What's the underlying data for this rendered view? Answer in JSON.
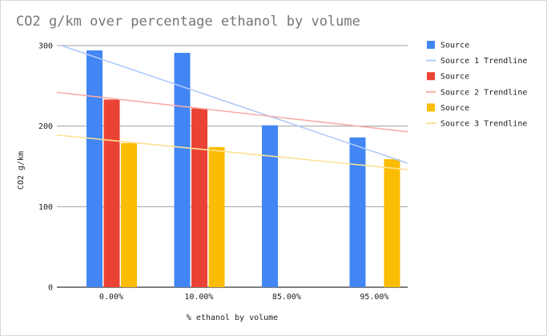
{
  "chart_data": {
    "type": "bar",
    "title": "CO2 g/km over percentage ethanol by volume",
    "xlabel": "% ethanol by volume",
    "ylabel": "CO2 g/km",
    "ylim": [
      0,
      300
    ],
    "yticks": [
      0,
      100,
      200,
      300
    ],
    "grid": true,
    "legend_position": "right",
    "categories": [
      "0.00%",
      "10.00%",
      "85.00%",
      "95.00%"
    ],
    "series": [
      {
        "name": "Source",
        "color": "#4285f4",
        "values": [
          294,
          291,
          201,
          186
        ]
      },
      {
        "name": "Source",
        "color": "#ea4335",
        "values": [
          233,
          222,
          null,
          null
        ]
      },
      {
        "name": "Source",
        "color": "#fbbc04",
        "values": [
          179,
          174,
          null,
          159
        ]
      }
    ],
    "trendlines": [
      {
        "name": "Source 1 Trendline",
        "color": "#aecbfa",
        "y_start": 302,
        "y_end": 154
      },
      {
        "name": "Source 2 Trendline",
        "color": "#f6aea9",
        "y_start": 242,
        "y_end": 193
      },
      {
        "name": "Source 3 Trendline",
        "color": "#fde293",
        "y_start": 189,
        "y_end": 146
      }
    ]
  }
}
